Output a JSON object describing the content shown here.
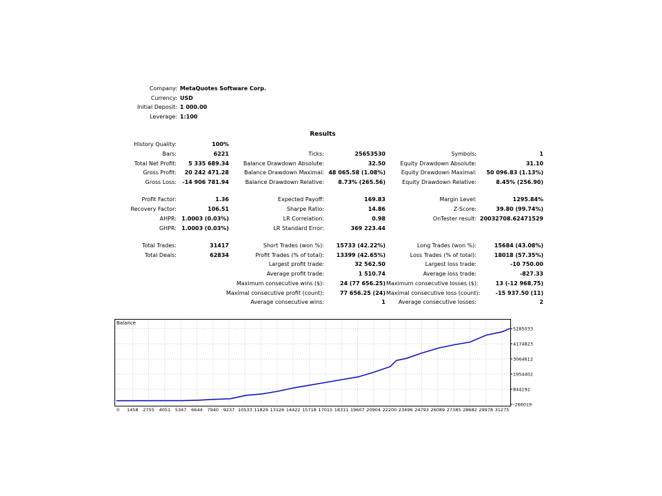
{
  "header": [
    {
      "label": "Company:",
      "value": "MetaQuotes Software Corp."
    },
    {
      "label": "Currency:",
      "value": "USD"
    },
    {
      "label": "Initial Deposit:",
      "value": "1 000.00"
    },
    {
      "label": "Leverage:",
      "value": "1:100"
    }
  ],
  "results_title": "Results",
  "rows": [
    {
      "c1": [
        "History Quality:",
        "100%"
      ]
    },
    {
      "c1": [
        "Bars:",
        "6221"
      ],
      "c2": [
        "Ticks:",
        "25653530"
      ],
      "c3": [
        "Symbols:",
        "1"
      ]
    },
    {
      "c1": [
        "Total Net Profit:",
        "5 335 689.34"
      ],
      "c2": [
        "Balance Drawdown Absolute:",
        "32.50"
      ],
      "c3": [
        "Equity Drawdown Absolute:",
        "31.10"
      ]
    },
    {
      "c1": [
        "Gross Profit:",
        "20 242 471.28"
      ],
      "c2": [
        "Balance Drawdown Maximal:",
        "48 065.58 (1.08%)"
      ],
      "c3": [
        "Equity Drawdown Maximal:",
        "50 096.83 (1.13%)"
      ]
    },
    {
      "c1": [
        "Gross Loss:",
        "-14 906 781.94"
      ],
      "c2": [
        "Balance Drawdown Relative:",
        "8.73% (265.56)"
      ],
      "c3": [
        "Equity Drawdown Relative:",
        "8.45% (256.90)"
      ]
    },
    {
      "gap": true
    },
    {
      "c1": [
        "Profit Factor:",
        "1.36"
      ],
      "c2": [
        "Expected Payoff:",
        "169.83"
      ],
      "c3": [
        "Margin Level:",
        "1295.84%"
      ]
    },
    {
      "c1": [
        "Recovery Factor:",
        "106.51"
      ],
      "c2": [
        "Sharpe Ratio:",
        "14.86"
      ],
      "c3": [
        "Z-Score:",
        "39.80 (99.74%)"
      ]
    },
    {
      "c1": [
        "AHPR:",
        "1.0003 (0.03%)"
      ],
      "c2": [
        "LR Correlation:",
        "0.98"
      ],
      "c3": [
        "OnTester result:",
        "20032708.62471529"
      ]
    },
    {
      "c1": [
        "GHPR:",
        "1.0003 (0.03%)"
      ],
      "c2": [
        "LR Standard Error:",
        "369 223.44"
      ]
    },
    {
      "gap": true
    },
    {
      "c1": [
        "Total Trades:",
        "31417"
      ],
      "c2": [
        "Short Trades (won %):",
        "15733 (42.22%)"
      ],
      "c3": [
        "Long Trades (won %):",
        "15684 (43.08%)"
      ]
    },
    {
      "c1": [
        "Total Deals:",
        "62834"
      ],
      "c2": [
        "Profit Trades (% of total):",
        "13399 (42.65%)"
      ],
      "c3": [
        "Loss Trades (% of total):",
        "18018 (57.35%)"
      ]
    },
    {
      "c2": [
        "Largest profit trade:",
        "32 562.50"
      ],
      "c3": [
        "Largest loss trade:",
        "-10 750.00"
      ]
    },
    {
      "c2": [
        "Average profit trade:",
        "1 510.74"
      ],
      "c3": [
        "Average loss trade:",
        "-827.33"
      ]
    },
    {
      "c2": [
        "Maximum consecutive wins ($):",
        "24 (77 656.25)"
      ],
      "c3": [
        "Maximum consecutive losses ($):",
        "13 (-12 968.75)"
      ]
    },
    {
      "c2": [
        "Maximal consecutive profit (count):",
        "77 656.25 (24)"
      ],
      "c3": [
        "Maximal consecutive loss (count):",
        "-15 937.50 (11)"
      ]
    },
    {
      "c2": [
        "Average consecutive wins:",
        "1"
      ],
      "c3": [
        "Average consecutive losses:",
        "2"
      ]
    }
  ],
  "chart_data": {
    "type": "line",
    "title": "Balance",
    "x_ticks": [
      "0",
      "1458",
      "2755",
      "4051",
      "5347",
      "6644",
      "7940",
      "9237",
      "10533",
      "11829",
      "13126",
      "14422",
      "15718",
      "17015",
      "18311",
      "19607",
      "20904",
      "22200",
      "23496",
      "24793",
      "26089",
      "27385",
      "28682",
      "29978",
      "31275"
    ],
    "y_ticks": [
      "5285033",
      "4174823",
      "3064612",
      "1954402",
      "844192",
      "-266019"
    ],
    "ylim": [
      -266019,
      5285033
    ],
    "grid": true,
    "line_color": "#1414b4",
    "series": [
      {
        "x": [
          0,
          5347,
          6644,
          7940,
          9237,
          10533,
          11829,
          13126,
          14422,
          15718,
          17015,
          18311,
          19607,
          20904,
          22200,
          22700,
          23496,
          24793,
          26089,
          27385,
          28682,
          29978,
          31275,
          31900
        ],
        "y": [
          1000,
          5000,
          40000,
          100000,
          150000,
          400000,
          500000,
          700000,
          950000,
          1150000,
          1350000,
          1550000,
          1750000,
          2100000,
          2500000,
          2950000,
          3100000,
          3500000,
          3850000,
          4100000,
          4300000,
          4800000,
          5050000,
          5285033
        ]
      }
    ]
  }
}
